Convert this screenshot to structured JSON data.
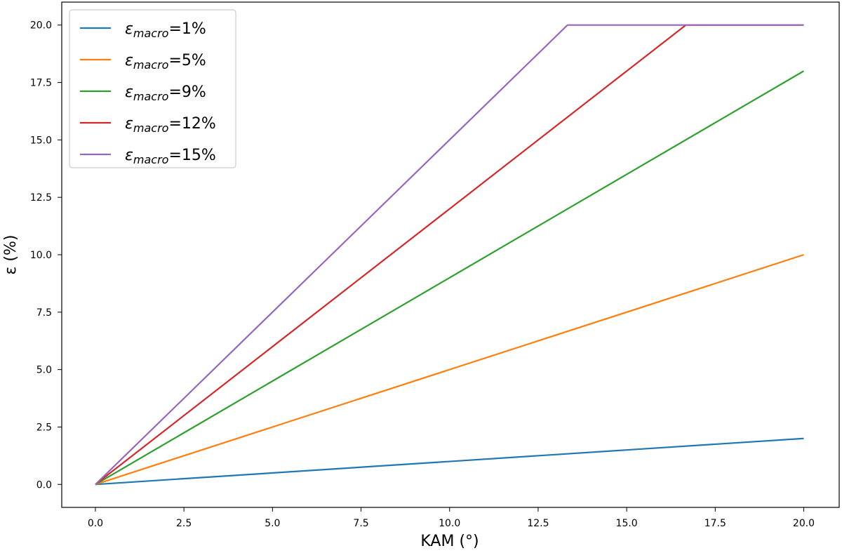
{
  "chart_data": {
    "type": "line",
    "xlabel": "KAM (°)",
    "ylabel": "ε (%)",
    "xlim": [
      -0.95,
      21.0
    ],
    "ylim": [
      -1.0,
      21.0
    ],
    "x_ticks": [
      "0.0",
      "2.5",
      "5.0",
      "7.5",
      "10.0",
      "12.5",
      "15.0",
      "17.5",
      "20.0"
    ],
    "y_ticks": [
      "0.0",
      "2.5",
      "5.0",
      "7.5",
      "10.0",
      "12.5",
      "15.0",
      "17.5",
      "20.0"
    ],
    "grid": false,
    "legend_position": "top-left",
    "series": [
      {
        "label": {
          "symbol": "ε",
          "sub": "macro",
          "suffix": "=1%"
        },
        "color": "#1f77b4",
        "points": [
          [
            0,
            0
          ],
          [
            20,
            2
          ]
        ]
      },
      {
        "label": {
          "symbol": "ε",
          "sub": "macro",
          "suffix": "=5%"
        },
        "color": "#ff7f0e",
        "points": [
          [
            0,
            0
          ],
          [
            20,
            10
          ]
        ]
      },
      {
        "label": {
          "symbol": "ε",
          "sub": "macro",
          "suffix": "=9%"
        },
        "color": "#2ca02c",
        "points": [
          [
            0,
            0
          ],
          [
            20,
            18
          ]
        ]
      },
      {
        "label": {
          "symbol": "ε",
          "sub": "macro",
          "suffix": "=12%"
        },
        "color": "#d62728",
        "points": [
          [
            0,
            0
          ],
          [
            16.67,
            20
          ],
          [
            20,
            20
          ]
        ]
      },
      {
        "label": {
          "symbol": "ε",
          "sub": "macro",
          "suffix": "=15%"
        },
        "color": "#9467bd",
        "points": [
          [
            0,
            0
          ],
          [
            13.33,
            20
          ],
          [
            20,
            20
          ]
        ]
      }
    ]
  }
}
